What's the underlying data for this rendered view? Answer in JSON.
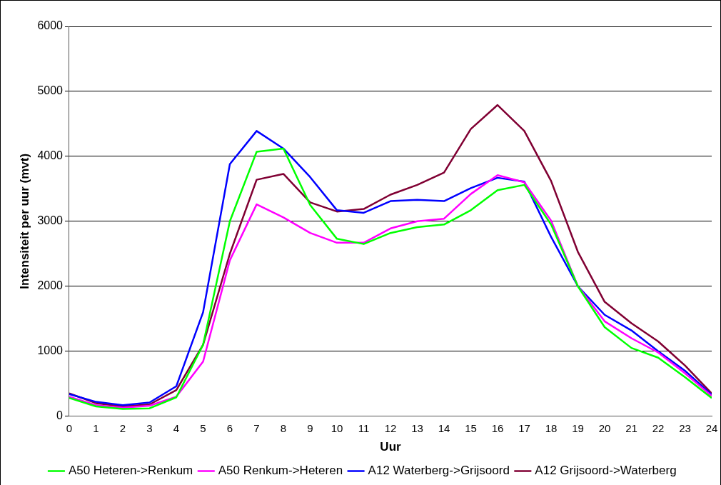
{
  "chart_data": {
    "type": "line",
    "xlabel": "Uur",
    "ylabel": "Intensiteit per uur (mvt)",
    "x": [
      0,
      1,
      2,
      3,
      4,
      5,
      6,
      7,
      8,
      9,
      10,
      11,
      12,
      13,
      14,
      15,
      16,
      17,
      18,
      19,
      20,
      21,
      22,
      23,
      24
    ],
    "xlim": [
      0,
      24
    ],
    "xticks": [
      0,
      1,
      2,
      3,
      4,
      5,
      6,
      7,
      8,
      9,
      10,
      11,
      12,
      13,
      14,
      15,
      16,
      17,
      18,
      19,
      20,
      21,
      22,
      23,
      24
    ],
    "series": [
      {
        "name": "A50 Heteren->Renkum",
        "color": "#00ff00",
        "values": [
          280,
          150,
          110,
          120,
          290,
          1100,
          3000,
          4070,
          4120,
          3250,
          2730,
          2650,
          2820,
          2910,
          2950,
          3170,
          3480,
          3560,
          2950,
          2000,
          1370,
          1050,
          900,
          600,
          280
        ]
      },
      {
        "name": "A50 Renkum->Heteren",
        "color": "#ff00ff",
        "values": [
          300,
          170,
          130,
          160,
          300,
          840,
          2400,
          3260,
          3060,
          2820,
          2670,
          2670,
          2890,
          3000,
          3040,
          3420,
          3710,
          3600,
          3010,
          2000,
          1460,
          1200,
          980,
          660,
          310
        ]
      },
      {
        "name": "A12 Waterberg->Grijsoord",
        "color": "#0000ff",
        "values": [
          340,
          220,
          170,
          210,
          460,
          1600,
          3880,
          4390,
          4120,
          3680,
          3170,
          3130,
          3310,
          3330,
          3310,
          3510,
          3670,
          3610,
          2760,
          2000,
          1560,
          1320,
          1000,
          700,
          330
        ]
      },
      {
        "name": "A12 Grijsoord->Waterberg",
        "color": "#800033",
        "values": [
          350,
          200,
          150,
          180,
          400,
          1100,
          2500,
          3640,
          3730,
          3290,
          3150,
          3190,
          3410,
          3560,
          3750,
          4420,
          4790,
          4390,
          3620,
          2530,
          1760,
          1430,
          1150,
          780,
          350
        ]
      }
    ],
    "ylim": [
      0,
      6000
    ],
    "yticks": [
      0,
      1000,
      2000,
      3000,
      4000,
      5000,
      6000
    ],
    "grid": "y",
    "legend": "bottom",
    "marker": "none",
    "line_style": "solid"
  }
}
